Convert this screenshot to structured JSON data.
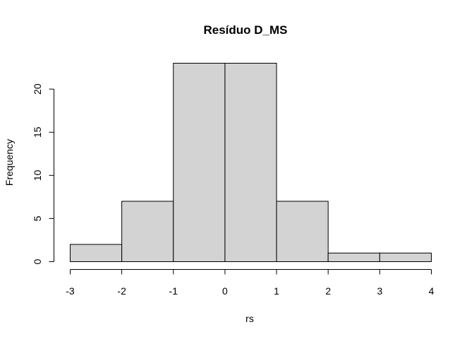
{
  "chart_data": {
    "type": "bar",
    "title": "Resíduo  D_MS",
    "xlabel": "rs",
    "ylabel": "Frequency",
    "bins": [
      {
        "x0": -3,
        "x1": -2,
        "count": 2
      },
      {
        "x0": -2,
        "x1": -1,
        "count": 7
      },
      {
        "x0": -1,
        "x1": 0,
        "count": 23
      },
      {
        "x0": 0,
        "x1": 1,
        "count": 23
      },
      {
        "x0": 1,
        "x1": 2,
        "count": 7
      },
      {
        "x0": 2,
        "x1": 3,
        "count": 1
      },
      {
        "x0": 3,
        "x1": 4,
        "count": 1
      }
    ],
    "xticks": [
      -3,
      -2,
      -1,
      0,
      1,
      2,
      3,
      4
    ],
    "yticks": [
      0,
      5,
      10,
      15,
      20
    ],
    "xlim": [
      -3,
      4
    ],
    "ylim": [
      0,
      23
    ],
    "bar_color": "#d3d3d3",
    "grid": false,
    "legend": "none"
  }
}
